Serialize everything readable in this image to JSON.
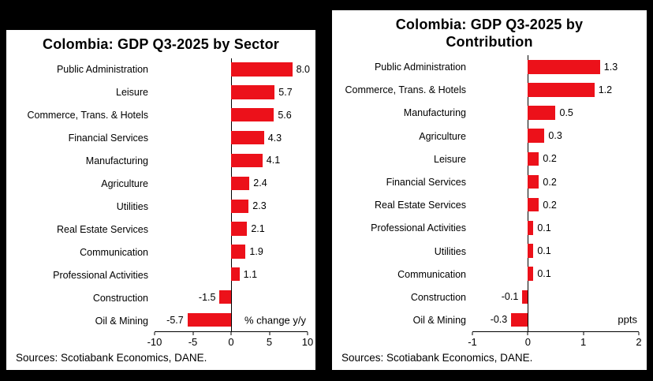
{
  "page": {
    "background_color": "#000000",
    "panel_color": "#FFFFFF"
  },
  "panels": [
    {
      "title": "Colombia: GDP Q3-2025 by Sector",
      "sources": "Sources: Scotiabank Economics, DANE."
    },
    {
      "title": "Colombia: GDP Q3-2025 by Contribution",
      "sources": "Sources: Scotiabank Economics, DANE."
    }
  ],
  "chart_data": [
    {
      "type": "bar",
      "orientation": "horizontal",
      "title": "Colombia: GDP Q3-2025 by Sector",
      "categories": [
        "Public Administration",
        "Leisure",
        "Commerce, Trans. & Hotels",
        "Financial Services",
        "Manufacturing",
        "Agriculture",
        "Utilities",
        "Real Estate Services",
        "Communication",
        "Professional Activities",
        "Construction",
        "Oil & Mining"
      ],
      "values": [
        8.0,
        5.7,
        5.6,
        4.3,
        4.1,
        2.4,
        2.3,
        2.1,
        1.9,
        1.1,
        -1.5,
        -5.7
      ],
      "value_labels": [
        "8.0",
        "5.7",
        "5.6",
        "4.3",
        "4.1",
        "2.4",
        "2.3",
        "2.1",
        "1.9",
        "1.1",
        "-1.5",
        "-5.7"
      ],
      "unit_label": "% change y/y",
      "xlim": [
        -10,
        10
      ],
      "xticks": [
        -10,
        -5,
        0,
        5,
        10
      ],
      "bar_color": "#EC111A",
      "grid": false,
      "legend": false
    },
    {
      "type": "bar",
      "orientation": "horizontal",
      "title": "Colombia: GDP Q3-2025 by Contribution",
      "categories": [
        "Public Administration",
        "Commerce, Trans. & Hotels",
        "Manufacturing",
        "Agriculture",
        "Leisure",
        "Financial Services",
        "Real Estate Services",
        "Professional Activities",
        "Utilities",
        "Communication",
        "Construction",
        "Oil & Mining"
      ],
      "values": [
        1.3,
        1.2,
        0.5,
        0.3,
        0.2,
        0.2,
        0.2,
        0.1,
        0.1,
        0.1,
        -0.1,
        -0.3
      ],
      "value_labels": [
        "1.3",
        "1.2",
        "0.5",
        "0.3",
        "0.2",
        "0.2",
        "0.2",
        "0.1",
        "0.1",
        "0.1",
        "-0.1",
        "-0.3"
      ],
      "unit_label": "ppts",
      "xlim": [
        -1,
        2
      ],
      "xticks": [
        -1,
        0,
        1,
        2
      ],
      "bar_color": "#EC111A",
      "grid": false,
      "legend": false
    }
  ]
}
